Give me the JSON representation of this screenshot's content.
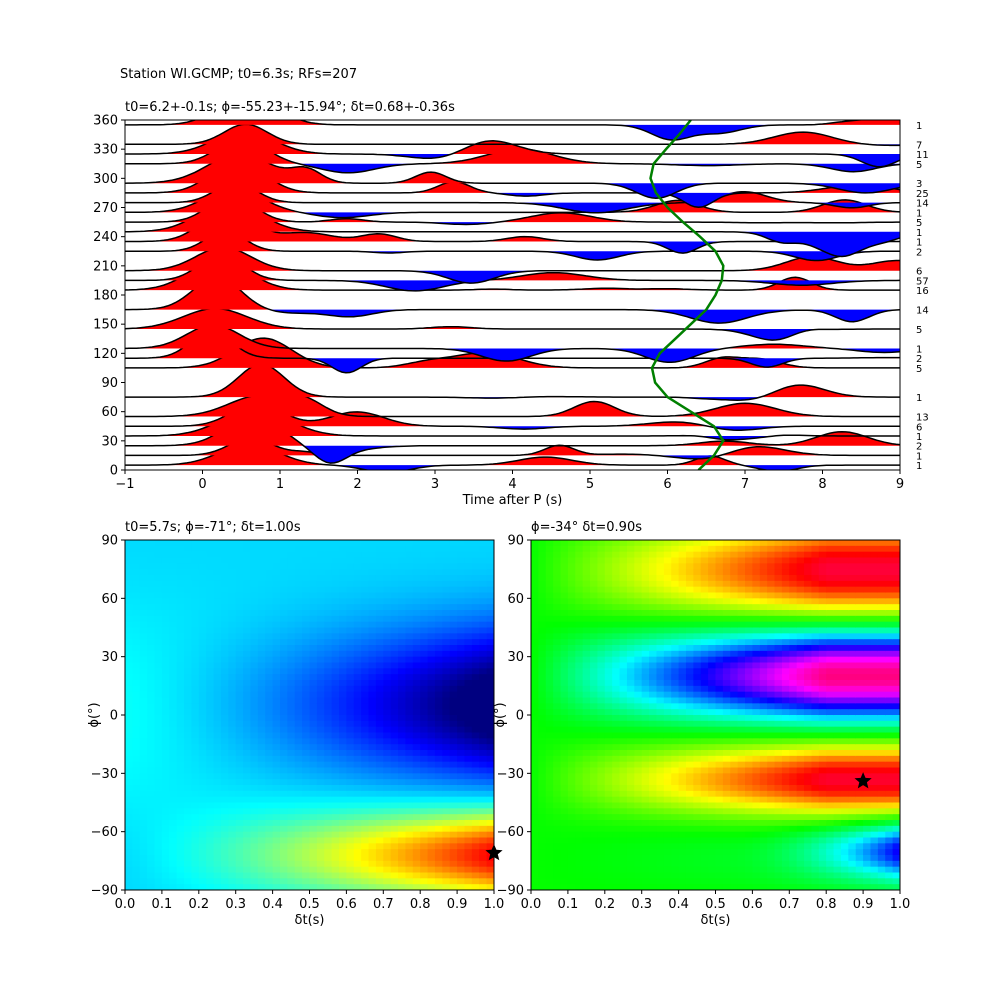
{
  "figure": {
    "suptitle": "Station WI.GCMP; t0=6.3s; RFs=207"
  },
  "chart_data": [
    {
      "type": "line",
      "title": "t0=6.2+-0.1s; ϕ=-55.23+-15.94°; δt=0.68+-0.36s",
      "xlabel": "Time after P (s)",
      "ylabel": "",
      "xlim": [
        -1,
        9
      ],
      "ylim": [
        0,
        360
      ],
      "xticks": [
        -1,
        0,
        1,
        2,
        3,
        4,
        5,
        6,
        7,
        8,
        9
      ],
      "yticks": [
        0,
        30,
        60,
        90,
        120,
        150,
        180,
        210,
        240,
        270,
        300,
        330,
        360
      ],
      "grid": false,
      "positive_fill_color": "#ff0000",
      "negative_fill_color": "#0000ff",
      "trace_color": "#000000",
      "back_azimuths": [
        5,
        15,
        25,
        35,
        45,
        55,
        75,
        105,
        115,
        125,
        145,
        165,
        185,
        195,
        205,
        225,
        235,
        245,
        255,
        265,
        275,
        285,
        295,
        315,
        325,
        335,
        355
      ],
      "counts": [
        "1",
        "1",
        "2",
        "1",
        "6",
        "13",
        "1",
        "5",
        "2",
        "1",
        "5",
        "14",
        "16",
        "57",
        "6",
        "2",
        "1",
        "1",
        "5",
        "1",
        "14",
        "25",
        "3",
        "5",
        "11",
        "7",
        "1"
      ],
      "t0_curve": {
        "color": "#008000",
        "mean": 6.2,
        "amplitude": 0.42,
        "points": [
          [
            6.4,
            0
          ],
          [
            6.6,
            15
          ],
          [
            6.72,
            30
          ],
          [
            6.6,
            45
          ],
          [
            6.3,
            60
          ],
          [
            6.0,
            75
          ],
          [
            5.84,
            90
          ],
          [
            5.8,
            105
          ],
          [
            5.9,
            120
          ],
          [
            6.1,
            135
          ],
          [
            6.3,
            150
          ],
          [
            6.5,
            165
          ],
          [
            6.62,
            180
          ],
          [
            6.7,
            195
          ],
          [
            6.72,
            210
          ],
          [
            6.62,
            225
          ],
          [
            6.42,
            240
          ],
          [
            6.2,
            255
          ],
          [
            6.0,
            270
          ],
          [
            5.85,
            285
          ],
          [
            5.78,
            300
          ],
          [
            5.82,
            315
          ],
          [
            5.98,
            330
          ],
          [
            6.15,
            345
          ],
          [
            6.3,
            360
          ]
        ]
      }
    },
    {
      "type": "heatmap",
      "title": "t0=5.7s; ϕ=-71°; δt=1.00s",
      "xlabel": "δt(s)",
      "ylabel": "ϕ(°)",
      "xlim": [
        0.0,
        1.0
      ],
      "ylim": [
        -90,
        90
      ],
      "xticks": [
        "0.0",
        "0.1",
        "0.2",
        "0.3",
        "0.4",
        "0.5",
        "0.6",
        "0.7",
        "0.8",
        "0.9",
        "1.0"
      ],
      "yticks": [
        -90,
        -60,
        -30,
        0,
        30,
        60,
        90
      ],
      "colormap": "jet",
      "best": {
        "dt": 1.0,
        "phi": -71
      }
    },
    {
      "type": "heatmap",
      "title": "ϕ=-34° δt=0.90s",
      "xlabel": "δt(s)",
      "ylabel": "ϕ(°)",
      "xlim": [
        0.0,
        1.0
      ],
      "ylim": [
        -90,
        90
      ],
      "xticks": [
        "0.0",
        "0.1",
        "0.2",
        "0.3",
        "0.4",
        "0.5",
        "0.6",
        "0.7",
        "0.8",
        "0.9",
        "1.0"
      ],
      "yticks": [
        -90,
        -60,
        -30,
        0,
        30,
        60,
        90
      ],
      "colormap": "hsv",
      "best": {
        "dt": 0.9,
        "phi": -34
      }
    }
  ]
}
